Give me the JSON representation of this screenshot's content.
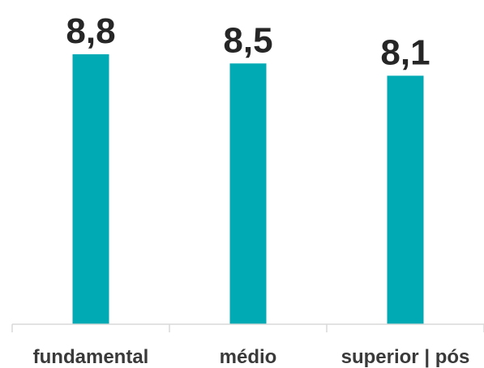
{
  "chart_data": {
    "type": "bar",
    "categories": [
      "fundamental",
      "médio",
      "superior | pós"
    ],
    "values": [
      8.8,
      8.5,
      8.1
    ],
    "value_labels": [
      "8,8",
      "8,5",
      "8,1"
    ],
    "title": "",
    "xlabel": "",
    "ylabel": "",
    "ylim": [
      0,
      10
    ],
    "grid": false,
    "legend": "none",
    "bar_color": "#00AAB5",
    "axis_color": "#D9D9D9"
  }
}
